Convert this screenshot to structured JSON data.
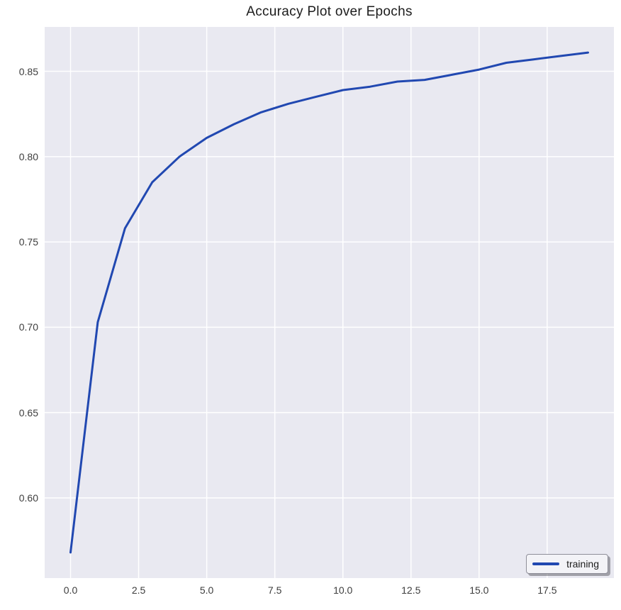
{
  "title": "Accuracy Plot over Epochs",
  "colors": {
    "figure_bg": "#ffffff",
    "axes_bg": "#e9e9f1",
    "grid": "#ffffff",
    "line": "#2148b1",
    "tick_label": "#3d3d3d",
    "title": "#1c1c1c",
    "legend_bg": "#f3f3f7",
    "legend_border": "#8f8f99"
  },
  "legend": {
    "label": "training",
    "position": "lower right"
  },
  "chart_data": {
    "type": "line",
    "title": "Accuracy Plot over Epochs",
    "xlabel": "",
    "ylabel": "",
    "grid": true,
    "legend_position": "lower right",
    "xlim": [
      -0.95,
      19.95
    ],
    "ylim": [
      0.553,
      0.876
    ],
    "x_ticks": [
      0,
      2.5,
      5,
      7.5,
      10,
      12.5,
      15,
      17.5
    ],
    "x_tick_labels": [
      "0.0",
      "2.5",
      "5.0",
      "7.5",
      "10.0",
      "12.5",
      "15.0",
      "17.5"
    ],
    "y_ticks": [
      0.6,
      0.65,
      0.7,
      0.75,
      0.8,
      0.85
    ],
    "y_tick_labels": [
      "0.60",
      "0.65",
      "0.70",
      "0.75",
      "0.80",
      "0.85"
    ],
    "x": [
      0,
      1,
      2,
      3,
      4,
      5,
      6,
      7,
      8,
      9,
      10,
      11,
      12,
      13,
      14,
      15,
      16,
      17,
      18,
      19
    ],
    "series": [
      {
        "name": "training",
        "color": "#2148b1",
        "values": [
          0.568,
          0.703,
          0.758,
          0.785,
          0.8,
          0.811,
          0.819,
          0.826,
          0.831,
          0.835,
          0.839,
          0.841,
          0.844,
          0.845,
          0.848,
          0.851,
          0.855,
          0.857,
          0.859,
          0.861
        ]
      }
    ]
  }
}
